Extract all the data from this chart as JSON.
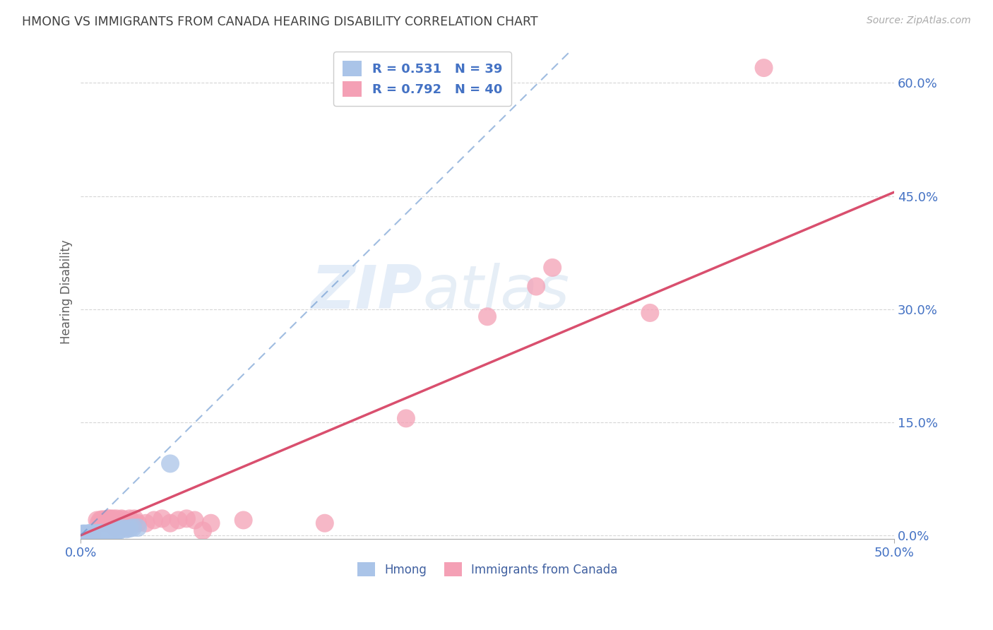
{
  "title": "HMONG VS IMMIGRANTS FROM CANADA HEARING DISABILITY CORRELATION CHART",
  "source": "Source: ZipAtlas.com",
  "xlim": [
    0,
    0.5
  ],
  "ylim": [
    -0.005,
    0.65
  ],
  "ylabel": "Hearing Disability",
  "legend_blue_r": "R = 0.531",
  "legend_blue_n": "N = 39",
  "legend_pink_r": "R = 0.792",
  "legend_pink_n": "N = 40",
  "watermark": "ZIPatlas",
  "blue_color": "#aac4e8",
  "pink_color": "#f4a0b5",
  "blue_line_color": "#6090cc",
  "pink_line_color": "#d94f6e",
  "title_color": "#404040",
  "tick_label_color": "#4472c4",
  "grid_color": "#cccccc",
  "blue_dots_x": [
    0.0,
    0.001,
    0.001,
    0.002,
    0.002,
    0.003,
    0.003,
    0.003,
    0.004,
    0.004,
    0.005,
    0.005,
    0.006,
    0.006,
    0.007,
    0.007,
    0.008,
    0.008,
    0.009,
    0.01,
    0.01,
    0.011,
    0.012,
    0.013,
    0.015,
    0.016,
    0.018,
    0.019,
    0.02,
    0.021,
    0.022,
    0.023,
    0.024,
    0.026,
    0.028,
    0.03,
    0.032,
    0.035,
    0.055
  ],
  "blue_dots_y": [
    0.0,
    0.002,
    0.001,
    0.002,
    0.001,
    0.002,
    0.001,
    0.0,
    0.002,
    0.001,
    0.002,
    0.001,
    0.003,
    0.001,
    0.002,
    0.001,
    0.002,
    0.001,
    0.001,
    0.003,
    0.002,
    0.002,
    0.002,
    0.003,
    0.002,
    0.002,
    0.003,
    0.002,
    0.003,
    0.003,
    0.003,
    0.007,
    0.008,
    0.009,
    0.008,
    0.009,
    0.01,
    0.01,
    0.095
  ],
  "pink_dots_x": [
    0.005,
    0.007,
    0.01,
    0.011,
    0.012,
    0.013,
    0.013,
    0.015,
    0.016,
    0.017,
    0.018,
    0.019,
    0.02,
    0.021,
    0.022,
    0.025,
    0.026,
    0.028,
    0.03,
    0.032,
    0.033,
    0.035,
    0.04,
    0.045,
    0.05,
    0.055,
    0.06,
    0.065,
    0.07,
    0.075,
    0.08,
    0.1,
    0.15,
    0.2,
    0.25,
    0.28,
    0.29,
    0.35,
    0.42,
    0.003
  ],
  "pink_dots_y": [
    0.0,
    0.001,
    0.02,
    0.016,
    0.02,
    0.017,
    0.021,
    0.021,
    0.016,
    0.022,
    0.022,
    0.021,
    0.022,
    0.01,
    0.022,
    0.022,
    0.021,
    0.01,
    0.022,
    0.016,
    0.022,
    0.016,
    0.016,
    0.02,
    0.022,
    0.016,
    0.02,
    0.022,
    0.02,
    0.006,
    0.016,
    0.02,
    0.016,
    0.155,
    0.29,
    0.33,
    0.355,
    0.295,
    0.62,
    0.0
  ],
  "pink_line_x": [
    0.0,
    0.5
  ],
  "pink_line_y": [
    0.0,
    0.455
  ],
  "blue_line_x": [
    0.0,
    0.3
  ],
  "blue_line_y": [
    0.0,
    0.64
  ],
  "ytick_vals": [
    0.0,
    0.15,
    0.3,
    0.45,
    0.6
  ],
  "ytick_labels": [
    "0.0%",
    "15.0%",
    "30.0%",
    "45.0%",
    "60.0%"
  ],
  "xtick_vals": [
    0.0,
    0.5
  ],
  "xtick_labels": [
    "0.0%",
    "50.0%"
  ]
}
